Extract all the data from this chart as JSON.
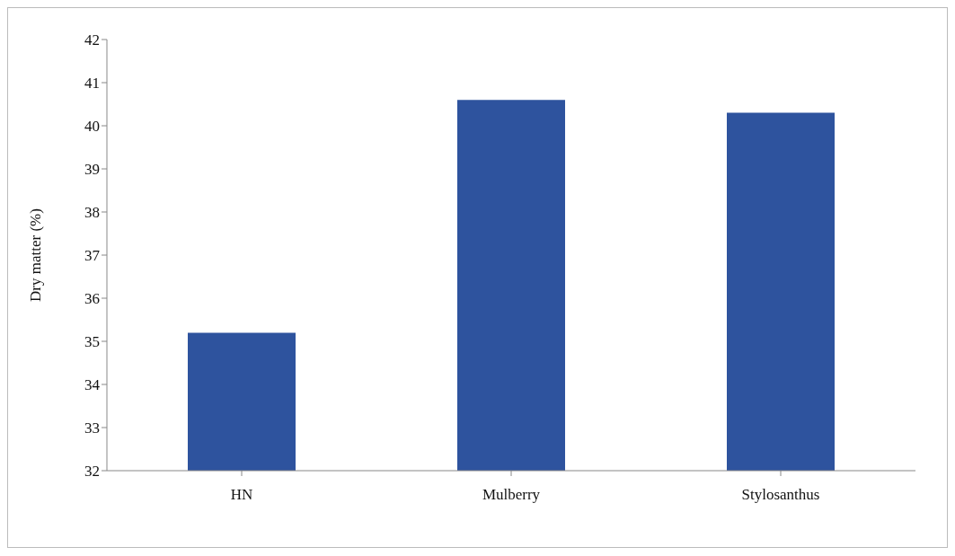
{
  "chart_data": {
    "type": "bar",
    "ylabel": "Dry matter (%)",
    "categories": [
      "HN",
      "Mulberry",
      "Stylosanthus"
    ],
    "values": [
      35.2,
      40.6,
      40.3
    ],
    "color": "#2e539e",
    "ylim": [
      32,
      42
    ],
    "yticks": [
      32,
      33,
      34,
      35,
      36,
      37,
      38,
      39,
      40,
      41,
      42
    ],
    "grid": false
  }
}
